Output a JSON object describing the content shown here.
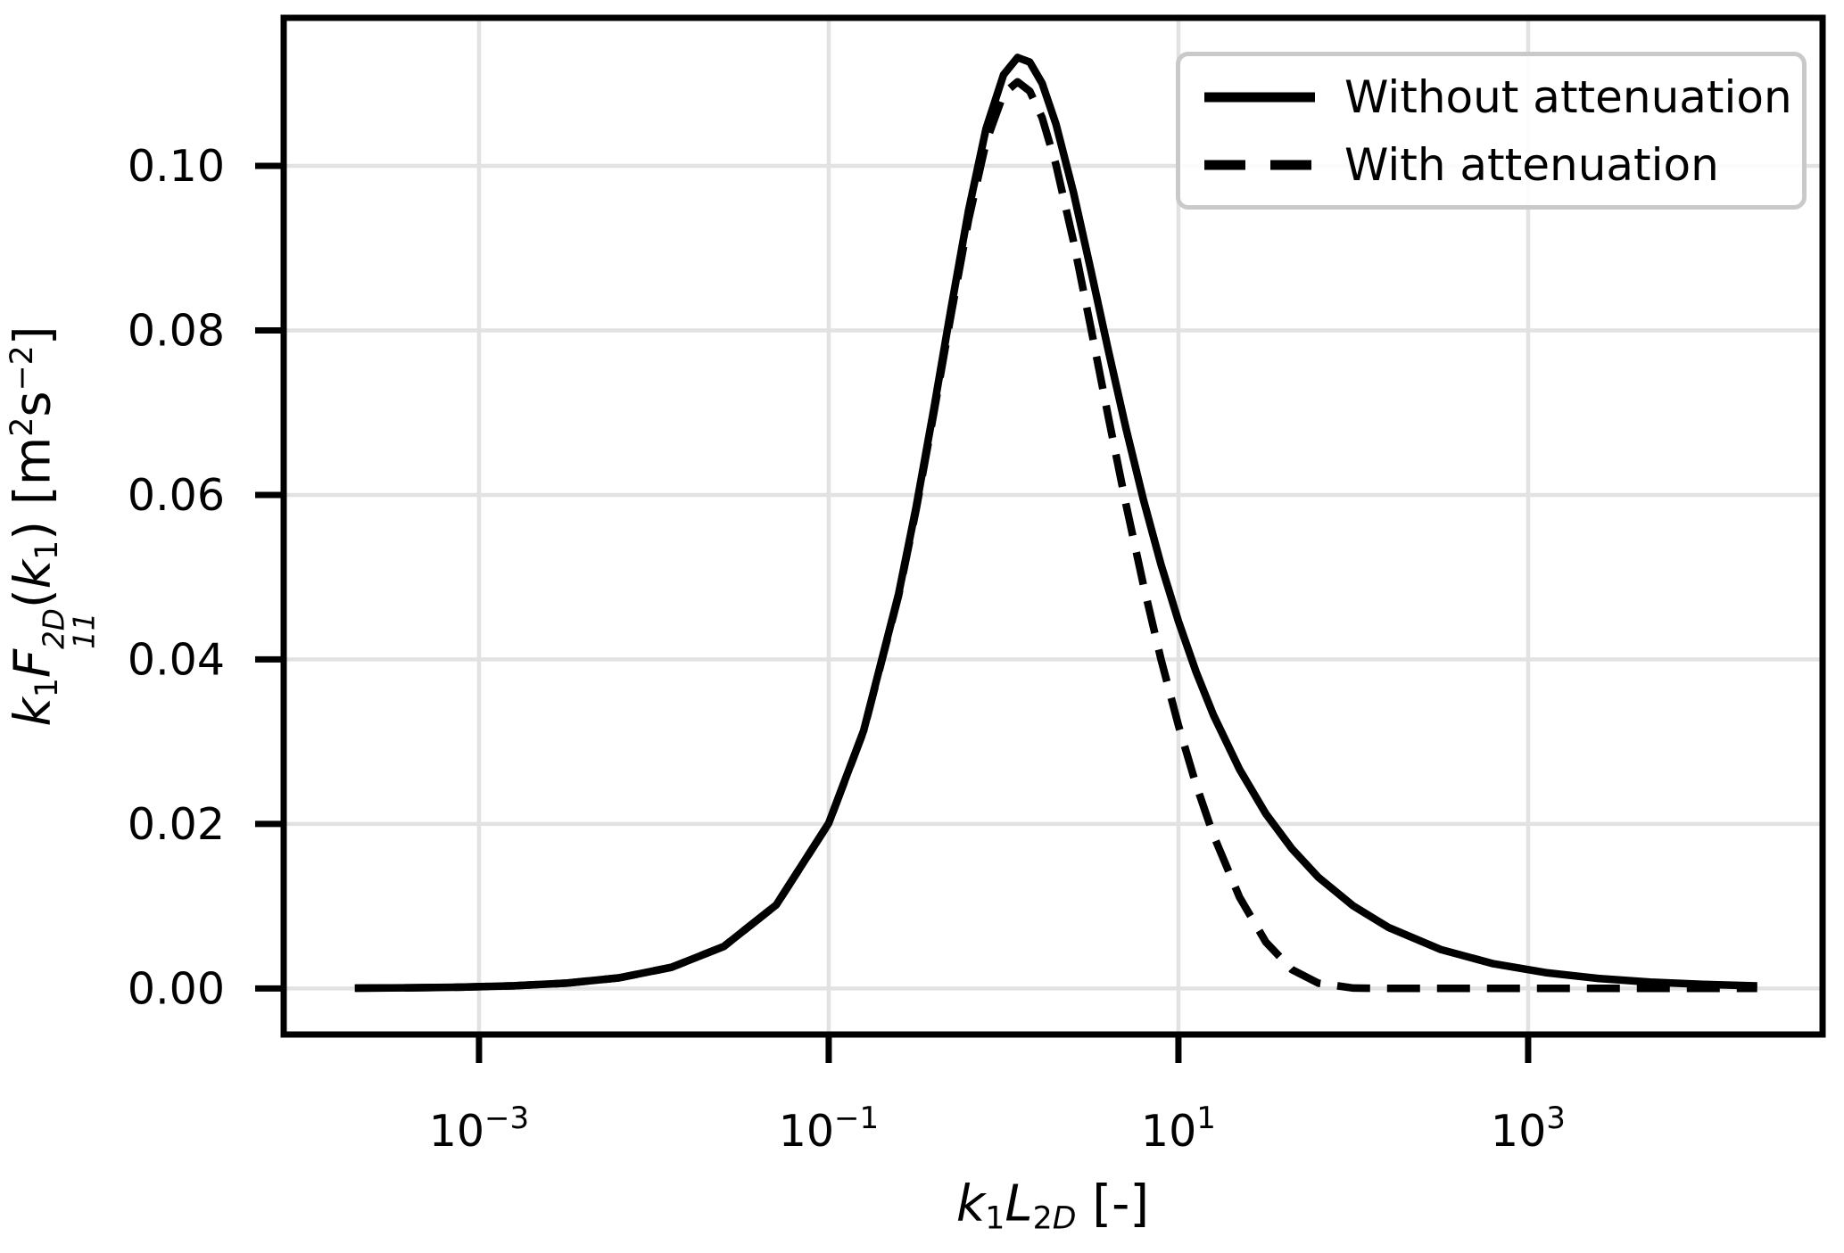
{
  "figure": {
    "background": "#ffffff"
  },
  "chart_data": {
    "type": "line",
    "title": "",
    "x_scale": "log10",
    "xlabel_text": "k1L2D [-]",
    "ylabel_text": "k1F11^2D(k1) [m2 s-2]",
    "xlabel_parts": [
      {
        "t": "k",
        "style": "it"
      },
      {
        "t": "1",
        "style": "sub"
      },
      {
        "t": "L",
        "style": "it"
      },
      {
        "t": "2",
        "style": "sub"
      },
      {
        "t": "D",
        "style": "subit"
      },
      {
        "t": " [-]",
        "style": "norm"
      }
    ],
    "ylabel_parts": [
      {
        "t": "k",
        "style": "it"
      },
      {
        "t": "1",
        "style": "sub"
      },
      {
        "t": "F",
        "style": "it"
      },
      {
        "style": "supsub",
        "sup": "2D",
        "sub": "11"
      },
      {
        "t": "(",
        "style": "norm"
      },
      {
        "t": "k",
        "style": "it"
      },
      {
        "t": "1",
        "style": "sub"
      },
      {
        "t": ")",
        "style": "norm"
      },
      {
        "t": " [m",
        "style": "norm"
      },
      {
        "t": "2",
        "style": "sup"
      },
      {
        "t": "s",
        "style": "norm"
      },
      {
        "t": "−2",
        "style": "sup"
      },
      {
        "t": "]",
        "style": "norm"
      }
    ],
    "xlim_log10": [
      -4.117,
      4.684
    ],
    "ylim": [
      -0.0056,
      0.118
    ],
    "x_ticks": [
      {
        "log10": -3,
        "base": "10",
        "exp": "−3"
      },
      {
        "log10": -1,
        "base": "10",
        "exp": "−1"
      },
      {
        "log10": 1,
        "base": "10",
        "exp": "1"
      },
      {
        "log10": 3,
        "base": "10",
        "exp": "3"
      }
    ],
    "y_ticks": [
      {
        "value": 0.0,
        "label": "0.00"
      },
      {
        "value": 0.02,
        "label": "0.02"
      },
      {
        "value": 0.04,
        "label": "0.04"
      },
      {
        "value": 0.06,
        "label": "0.06"
      },
      {
        "value": 0.08,
        "label": "0.08"
      },
      {
        "value": 0.1,
        "label": "0.10"
      }
    ],
    "grid": {
      "show": true,
      "color": "#e2e2e2",
      "width": 4.5
    },
    "colors": {
      "line": "#000000",
      "text": "#000000",
      "spine": "#000000",
      "legend_border": "#c9c9c9"
    },
    "line_width": 8.5,
    "dash_pattern": [
      37,
      19
    ],
    "legend": {
      "position": "upper right",
      "entries": [
        "Without attenuation",
        "With attenuation"
      ]
    },
    "series": [
      {
        "name": "Without attenuation",
        "style": "solid",
        "log10x": [
          -3.71,
          -3.4,
          -3.1,
          -2.8,
          -2.5,
          -2.2,
          -1.9,
          -1.6,
          -1.3,
          -1.0,
          -0.8,
          -0.6,
          -0.5,
          -0.4,
          -0.3,
          -0.2,
          -0.1,
          0.0,
          0.08,
          0.15,
          0.22,
          0.3,
          0.4,
          0.5,
          0.6,
          0.7,
          0.8,
          0.9,
          1.0,
          1.1,
          1.2,
          1.35,
          1.5,
          1.65,
          1.8,
          2.0,
          2.2,
          2.5,
          2.8,
          3.1,
          3.4,
          3.7,
          4.0,
          4.31
        ],
        "y": [
          4e-05,
          8e-05,
          0.00016,
          0.00032,
          0.00064,
          0.00128,
          0.00256,
          0.0051,
          0.01015,
          0.02008,
          0.03135,
          0.04798,
          0.05852,
          0.0703,
          0.08269,
          0.09459,
          0.10453,
          0.11108,
          0.11317,
          0.11262,
          0.11005,
          0.10508,
          0.09678,
          0.08725,
          0.0775,
          0.0681,
          0.05941,
          0.05157,
          0.04465,
          0.03855,
          0.03326,
          0.02662,
          0.02124,
          0.01696,
          0.01353,
          0.01003,
          0.00743,
          0.00473,
          0.00301,
          0.00192,
          0.00122,
          0.00078,
          0.00049,
          0.00031
        ]
      },
      {
        "name": "With attenuation",
        "style": "dashed",
        "log10x": [
          -3.71,
          -3.4,
          -3.1,
          -2.8,
          -2.5,
          -2.2,
          -1.9,
          -1.6,
          -1.3,
          -1.0,
          -0.8,
          -0.6,
          -0.5,
          -0.4,
          -0.3,
          -0.2,
          -0.1,
          0.0,
          0.08,
          0.15,
          0.22,
          0.3,
          0.4,
          0.5,
          0.6,
          0.7,
          0.8,
          0.9,
          1.0,
          1.1,
          1.2,
          1.35,
          1.5,
          1.65,
          1.8,
          2.0,
          2.2,
          2.5,
          2.8,
          3.1,
          3.4,
          3.7,
          4.0,
          4.31
        ],
        "y": [
          4e-05,
          8e-05,
          0.00016,
          0.00032,
          0.00064,
          0.00128,
          0.00256,
          0.0051,
          0.01015,
          0.02006,
          0.03128,
          0.04778,
          0.05821,
          0.06981,
          0.08194,
          0.09345,
          0.10288,
          0.10877,
          0.11023,
          0.10909,
          0.10588,
          0.10014,
          0.09083,
          0.08025,
          0.06941,
          0.05888,
          0.04905,
          0.04006,
          0.032,
          0.02485,
          0.01865,
          0.01108,
          0.00564,
          0.00228,
          0.00065,
          5e-05,
          0.0,
          0.0,
          0.0,
          0.0,
          0.0,
          0.0,
          0.0,
          0.0
        ]
      }
    ]
  }
}
